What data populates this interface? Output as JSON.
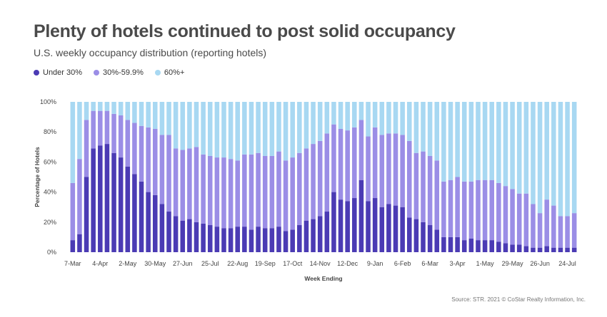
{
  "header": {
    "title": "Plenty of hotels continued to post solid occupancy",
    "subtitle": "U.S. weekly occupancy distribution (reporting hotels)"
  },
  "source": "Source: STR. 2021 © CoStar Realty Information, Inc.",
  "colors": {
    "under30": "#4b3bb4",
    "mid": "#9b8ee6",
    "over60": "#a8d8f2",
    "axis_text": "#444444"
  },
  "chart_data": {
    "type": "bar",
    "stacked": true,
    "title": "",
    "xlabel": "Week Ending",
    "ylabel": "Percentage of Hotels",
    "ylim": [
      0,
      100
    ],
    "y_ticks": [
      "0%",
      "20%",
      "40%",
      "60%",
      "80%",
      "100%"
    ],
    "y_tick_values": [
      0,
      20,
      40,
      60,
      80,
      100
    ],
    "legend_position": "top-left",
    "grid": false,
    "categories": [
      "2020-03-07",
      "2020-03-14",
      "2020-03-21",
      "2020-03-28",
      "2020-04-04",
      "2020-04-11",
      "2020-04-18",
      "2020-04-25",
      "2020-05-02",
      "2020-05-09",
      "2020-05-16",
      "2020-05-23",
      "2020-05-30",
      "2020-06-06",
      "2020-06-13",
      "2020-06-20",
      "2020-06-27",
      "2020-07-04",
      "2020-07-11",
      "2020-07-18",
      "2020-07-25",
      "2020-08-01",
      "2020-08-08",
      "2020-08-15",
      "2020-08-22",
      "2020-08-29",
      "2020-09-05",
      "2020-09-12",
      "2020-09-19",
      "2020-09-26",
      "2020-10-03",
      "2020-10-10",
      "2020-10-17",
      "2020-10-24",
      "2020-10-31",
      "2020-11-07",
      "2020-11-14",
      "2020-11-21",
      "2020-11-28",
      "2020-12-05",
      "2020-12-12",
      "2020-12-19",
      "2020-12-26",
      "2021-01-02",
      "2021-01-09",
      "2021-01-16",
      "2021-01-23",
      "2021-01-30",
      "2021-02-06",
      "2021-02-13",
      "2021-02-20",
      "2021-02-27",
      "2021-03-06",
      "2021-03-13",
      "2021-03-20",
      "2021-03-27",
      "2021-04-03",
      "2021-04-10",
      "2021-04-17",
      "2021-04-24",
      "2021-05-01",
      "2021-05-08",
      "2021-05-15",
      "2021-05-22",
      "2021-05-29",
      "2021-06-05",
      "2021-06-12",
      "2021-06-19",
      "2021-06-26",
      "2021-07-03",
      "2021-07-10",
      "2021-07-17",
      "2021-07-24",
      "2021-07-31"
    ],
    "x_tick_labels": [
      {
        "index": 0,
        "label": "7-Mar"
      },
      {
        "index": 4,
        "label": "4-Apr"
      },
      {
        "index": 8,
        "label": "2-May"
      },
      {
        "index": 12,
        "label": "30-May"
      },
      {
        "index": 16,
        "label": "27-Jun"
      },
      {
        "index": 20,
        "label": "25-Jul"
      },
      {
        "index": 24,
        "label": "22-Aug"
      },
      {
        "index": 28,
        "label": "19-Sep"
      },
      {
        "index": 32,
        "label": "17-Oct"
      },
      {
        "index": 36,
        "label": "14-Nov"
      },
      {
        "index": 40,
        "label": "12-Dec"
      },
      {
        "index": 44,
        "label": "9-Jan"
      },
      {
        "index": 48,
        "label": "6-Feb"
      },
      {
        "index": 52,
        "label": "6-Mar"
      },
      {
        "index": 56,
        "label": "3-Apr"
      },
      {
        "index": 60,
        "label": "1-May"
      },
      {
        "index": 64,
        "label": "29-May"
      },
      {
        "index": 68,
        "label": "26-Jun"
      },
      {
        "index": 72,
        "label": "24-Jul"
      }
    ],
    "series": [
      {
        "name": "Under 30%",
        "color_key": "under30",
        "values": [
          8,
          12,
          50,
          69,
          71,
          72,
          66,
          63,
          57,
          52,
          47,
          40,
          38,
          32,
          27,
          24,
          21,
          22,
          20,
          19,
          18,
          17,
          16,
          16,
          17,
          17,
          15,
          17,
          16,
          16,
          17,
          14,
          15,
          18,
          21,
          22,
          24,
          27,
          40,
          35,
          34,
          36,
          48,
          34,
          36,
          30,
          32,
          31,
          30,
          23,
          22,
          20,
          18,
          15,
          10,
          10,
          10,
          8,
          9,
          8,
          8,
          8,
          7,
          6,
          5,
          5,
          4,
          3,
          3,
          4,
          3,
          3,
          3,
          3
        ]
      },
      {
        "name": "30%-59.9%",
        "color_key": "mid",
        "values": [
          38,
          50,
          38,
          25,
          23,
          22,
          26,
          28,
          31,
          34,
          37,
          43,
          44,
          46,
          51,
          45,
          47,
          47,
          50,
          46,
          46,
          46,
          47,
          46,
          44,
          48,
          50,
          49,
          48,
          48,
          50,
          47,
          48,
          48,
          48,
          50,
          50,
          52,
          45,
          47,
          47,
          47,
          40,
          43,
          47,
          48,
          47,
          48,
          48,
          51,
          44,
          47,
          46,
          46,
          37,
          38,
          40,
          39,
          38,
          40,
          40,
          40,
          39,
          38,
          37,
          34,
          35,
          29,
          23,
          31,
          28,
          21,
          21,
          23
        ]
      },
      {
        "name": "60%+",
        "color_key": "over60",
        "values": [
          54,
          38,
          12,
          6,
          6,
          6,
          8,
          9,
          12,
          14,
          16,
          17,
          18,
          22,
          22,
          31,
          32,
          31,
          30,
          35,
          36,
          37,
          37,
          38,
          39,
          35,
          35,
          34,
          36,
          36,
          33,
          39,
          37,
          34,
          31,
          28,
          26,
          21,
          15,
          18,
          19,
          17,
          12,
          23,
          17,
          22,
          21,
          21,
          22,
          26,
          34,
          33,
          36,
          39,
          53,
          52,
          50,
          53,
          53,
          52,
          52,
          52,
          54,
          56,
          58,
          61,
          61,
          68,
          74,
          65,
          69,
          76,
          76,
          74
        ]
      }
    ]
  }
}
